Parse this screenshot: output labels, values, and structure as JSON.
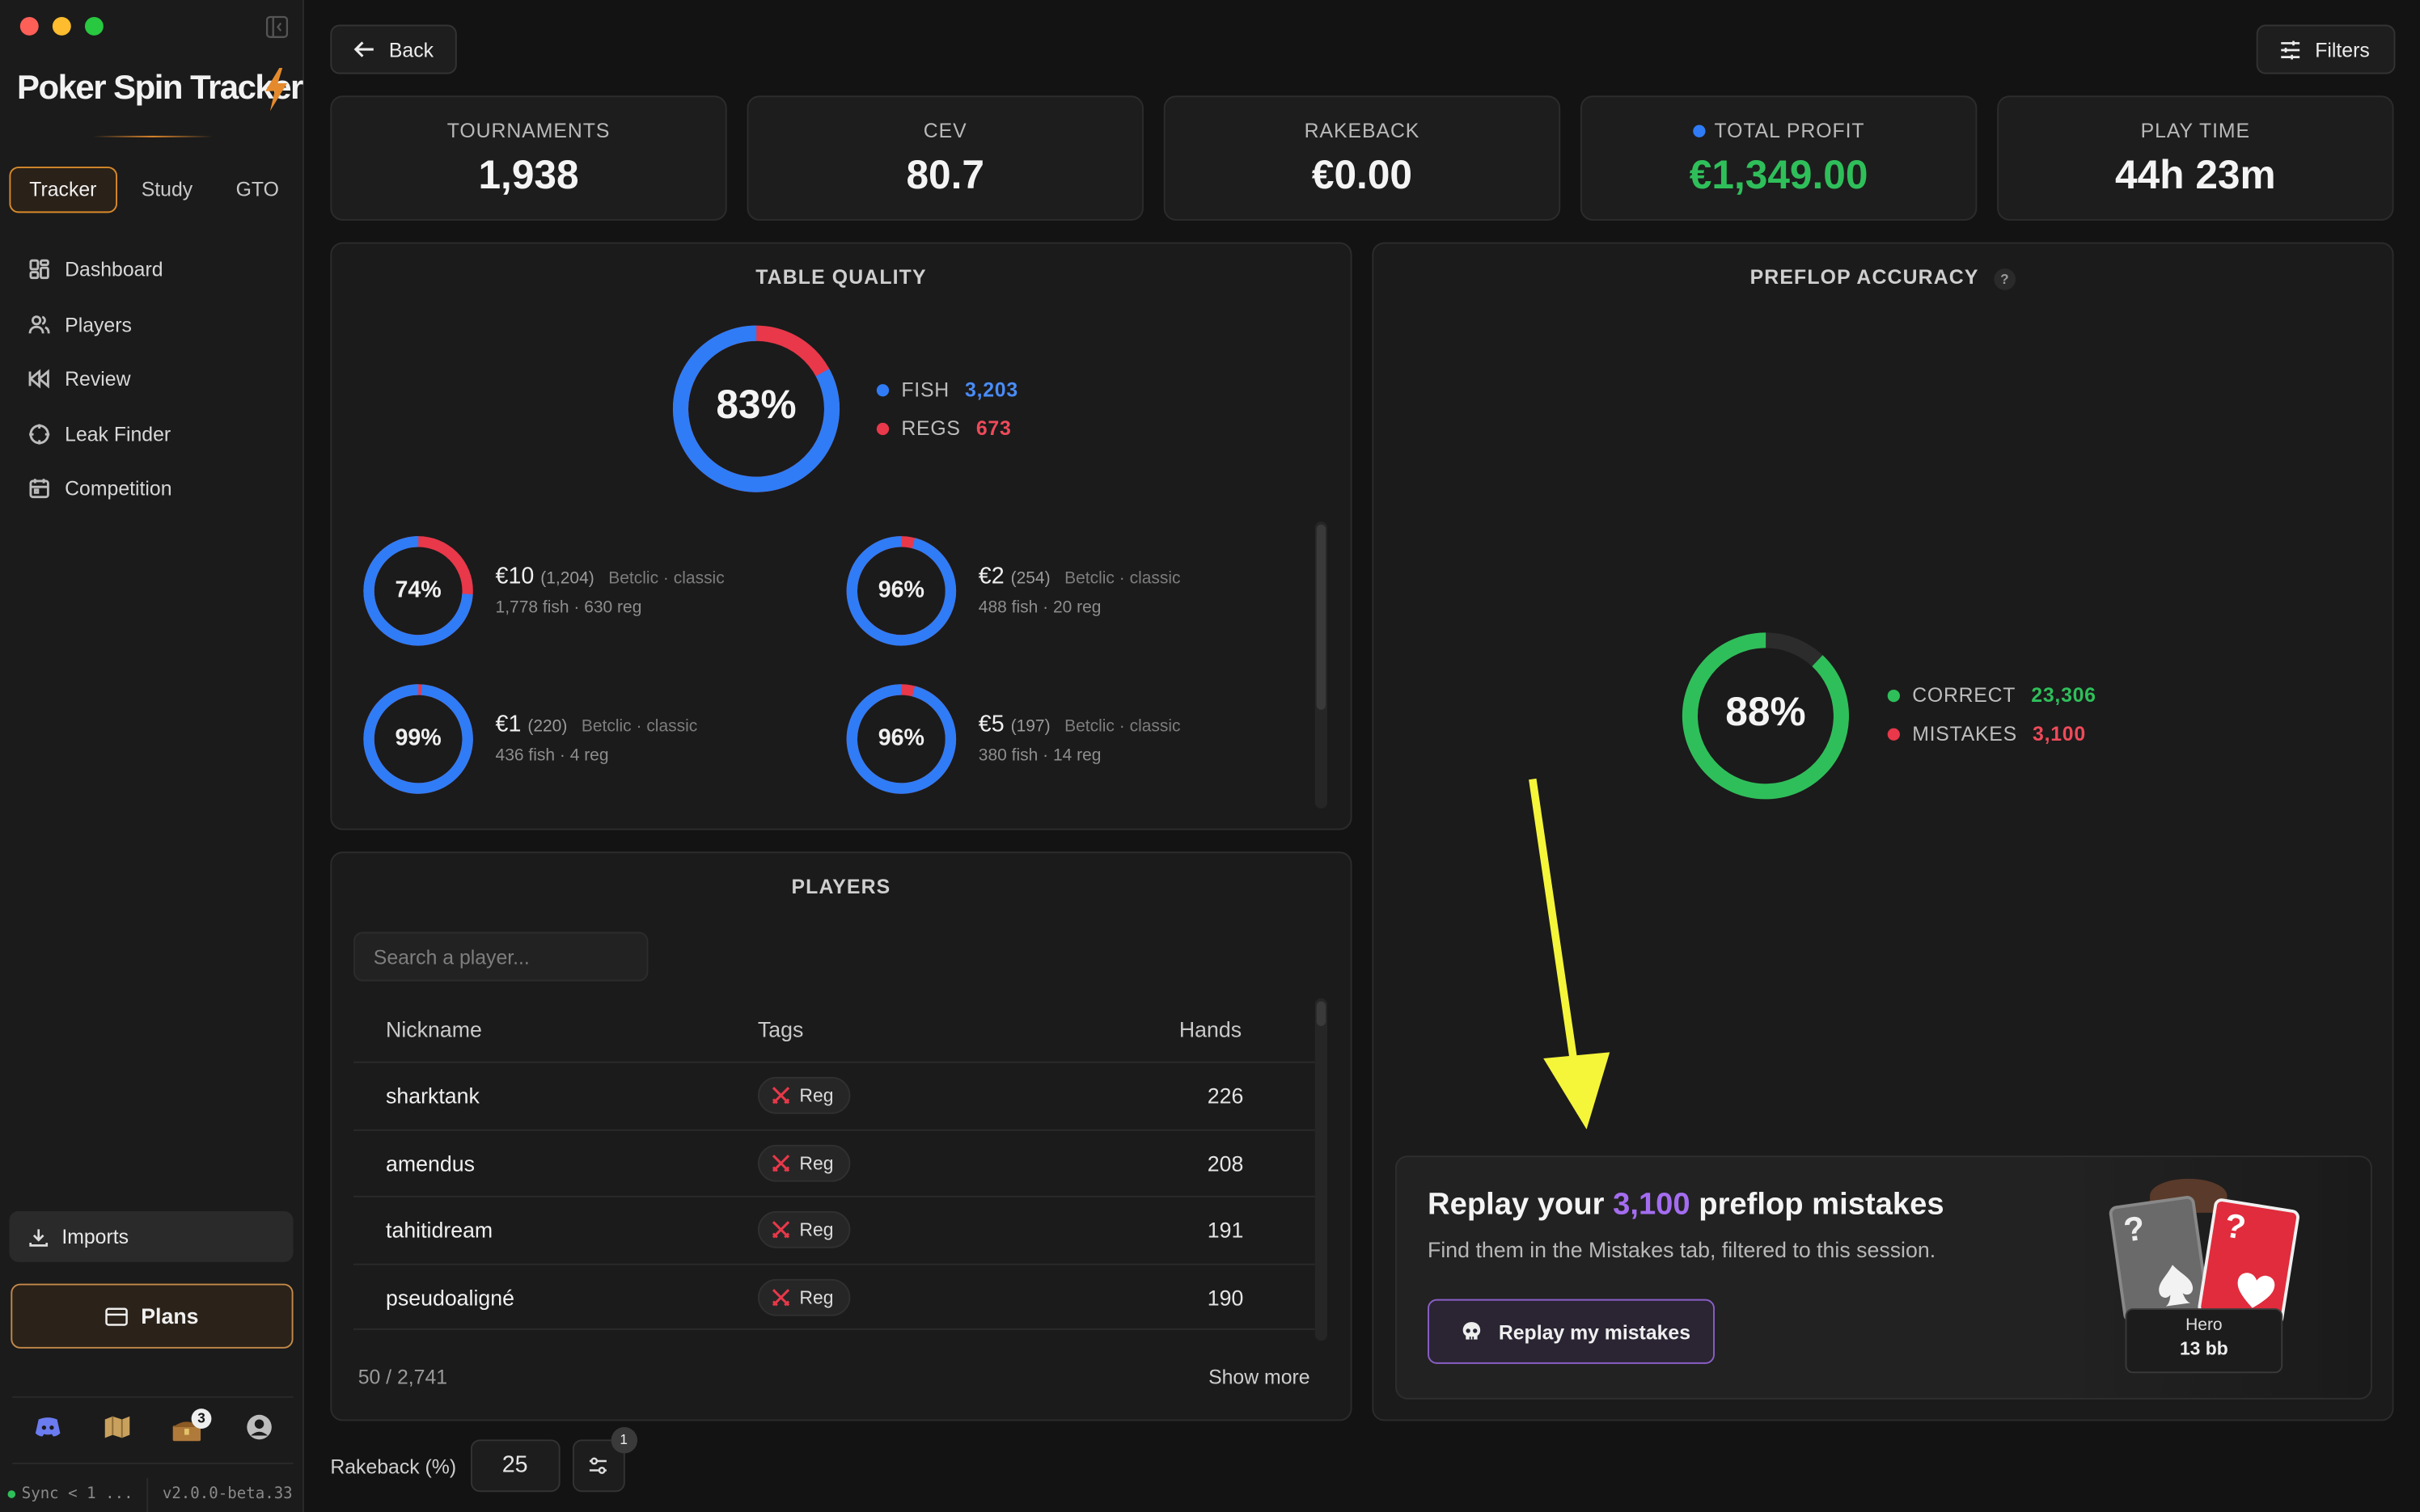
{
  "app": {
    "name": "Poker Spin Tracker",
    "version": "v2.0.0-beta.33",
    "sync_status": "Sync < 1 ..."
  },
  "mode_tabs": [
    {
      "label": "Tracker",
      "active": true
    },
    {
      "label": "Study"
    },
    {
      "label": "GTO"
    }
  ],
  "nav": {
    "items": [
      {
        "label": "Dashboard",
        "icon": "dashboard-icon"
      },
      {
        "label": "Players",
        "icon": "users-icon"
      },
      {
        "label": "Review",
        "icon": "rewind-icon"
      },
      {
        "label": "Leak Finder",
        "icon": "crosshair-icon"
      },
      {
        "label": "Competition",
        "icon": "calendar-icon"
      }
    ]
  },
  "imports_label": "Imports",
  "plans_label": "Plans",
  "notification_count": "3",
  "back_label": "Back",
  "filters_label": "Filters",
  "stats": [
    {
      "label": "TOURNAMENTS",
      "value": "1,938"
    },
    {
      "label": "CEV",
      "value": "80.7"
    },
    {
      "label": "RAKEBACK",
      "value": "€0.00"
    },
    {
      "label": "TOTAL PROFIT",
      "value": "€1,349.00",
      "color": "#2fbf5a"
    },
    {
      "label": "PLAY TIME",
      "value": "44h 23m"
    }
  ],
  "table_quality": {
    "title": "TABLE QUALITY",
    "overall_percent": "83%",
    "overall_fraction": 0.83,
    "fish_label": "FISH",
    "fish_count": "3,203",
    "regs_label": "REGS",
    "regs_count": "673",
    "stakes": [
      {
        "percent": "74%",
        "fraction": 0.74,
        "price": "€10",
        "count": "(1,204)",
        "site": "Betclic · classic",
        "detail": "1,778 fish · 630 reg"
      },
      {
        "percent": "96%",
        "fraction": 0.96,
        "price": "€2",
        "count": "(254)",
        "site": "Betclic · classic",
        "detail": "488 fish · 20 reg"
      },
      {
        "percent": "99%",
        "fraction": 0.99,
        "price": "€1",
        "count": "(220)",
        "site": "Betclic · classic",
        "detail": "436 fish · 4 reg"
      },
      {
        "percent": "96%",
        "fraction": 0.96,
        "price": "€5",
        "count": "(197)",
        "site": "Betclic · classic",
        "detail": "380 fish · 14 reg"
      }
    ]
  },
  "preflop": {
    "title": "PREFLOP ACCURACY",
    "help": "?",
    "percent": "88%",
    "fraction": 0.88,
    "correct_label": "CORRECT",
    "correct_count": "23,306",
    "mistakes_label": "MISTAKES",
    "mistakes_count": "3,100"
  },
  "players": {
    "title": "PLAYERS",
    "search_placeholder": "Search a player...",
    "columns": [
      "Nickname",
      "Tags",
      "Hands"
    ],
    "rows": [
      {
        "nickname": "sharktank",
        "tag": "Reg",
        "hands": "226"
      },
      {
        "nickname": "amendus",
        "tag": "Reg",
        "hands": "208"
      },
      {
        "nickname": "tahitidream",
        "tag": "Reg",
        "hands": "191"
      },
      {
        "nickname": "pseudoaligné",
        "tag": "Reg",
        "hands": "190"
      }
    ],
    "pagination": "50 / 2,741",
    "show_more": "Show more"
  },
  "replay": {
    "title_prefix": "Replay your",
    "count": "3,100",
    "title_suffix": "preflop mistakes",
    "subtitle": "Find them in the Mistakes tab, filtered to this session.",
    "button": "Replay my mistakes",
    "card_left": "?",
    "card_right": "?",
    "hero_label": "Hero",
    "hero_stack": "13 bb"
  },
  "rakeback": {
    "label": "Rakeback (%)",
    "value": "25",
    "badge": "1"
  },
  "colors": {
    "fish": "#2f7cf6",
    "regs": "#e8384a",
    "correct": "#2fbf5a",
    "accent": "#a46df0",
    "orange": "#e48a2c"
  }
}
